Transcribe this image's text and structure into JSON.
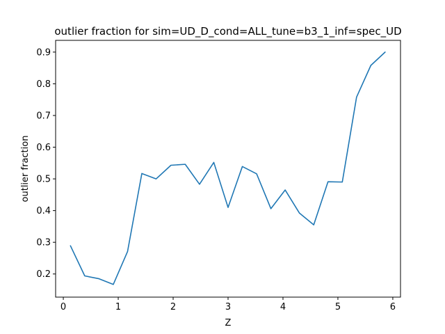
{
  "chart_data": {
    "type": "line",
    "title": "outlier fraction for sim=UD_D_cond=ALL_tune=b3_1_inf=spec_UD",
    "xlabel": "Z",
    "ylabel": "outlier fraction",
    "xlim": [
      -0.14,
      6.14
    ],
    "ylim": [
      0.127,
      0.937
    ],
    "xticks": [
      0,
      1,
      2,
      3,
      4,
      5,
      6
    ],
    "yticks": [
      0.2,
      0.3,
      0.4,
      0.5,
      0.6,
      0.7,
      0.8,
      0.9
    ],
    "grid": false,
    "color": "#1f77b4",
    "series": [
      {
        "x": [
          0.13,
          0.39,
          0.65,
          0.91,
          1.17,
          1.43,
          1.69,
          1.96,
          2.22,
          2.48,
          2.74,
          3.0,
          3.26,
          3.52,
          3.78,
          4.04,
          4.3,
          4.56,
          4.82,
          5.08,
          5.34,
          5.6,
          5.86
        ],
        "y": [
          0.289,
          0.194,
          0.185,
          0.167,
          0.271,
          0.517,
          0.5,
          0.543,
          0.546,
          0.483,
          0.552,
          0.41,
          0.539,
          0.516,
          0.406,
          0.465,
          0.392,
          0.355,
          0.491,
          0.49,
          0.758,
          0.858,
          0.9
        ]
      }
    ]
  }
}
